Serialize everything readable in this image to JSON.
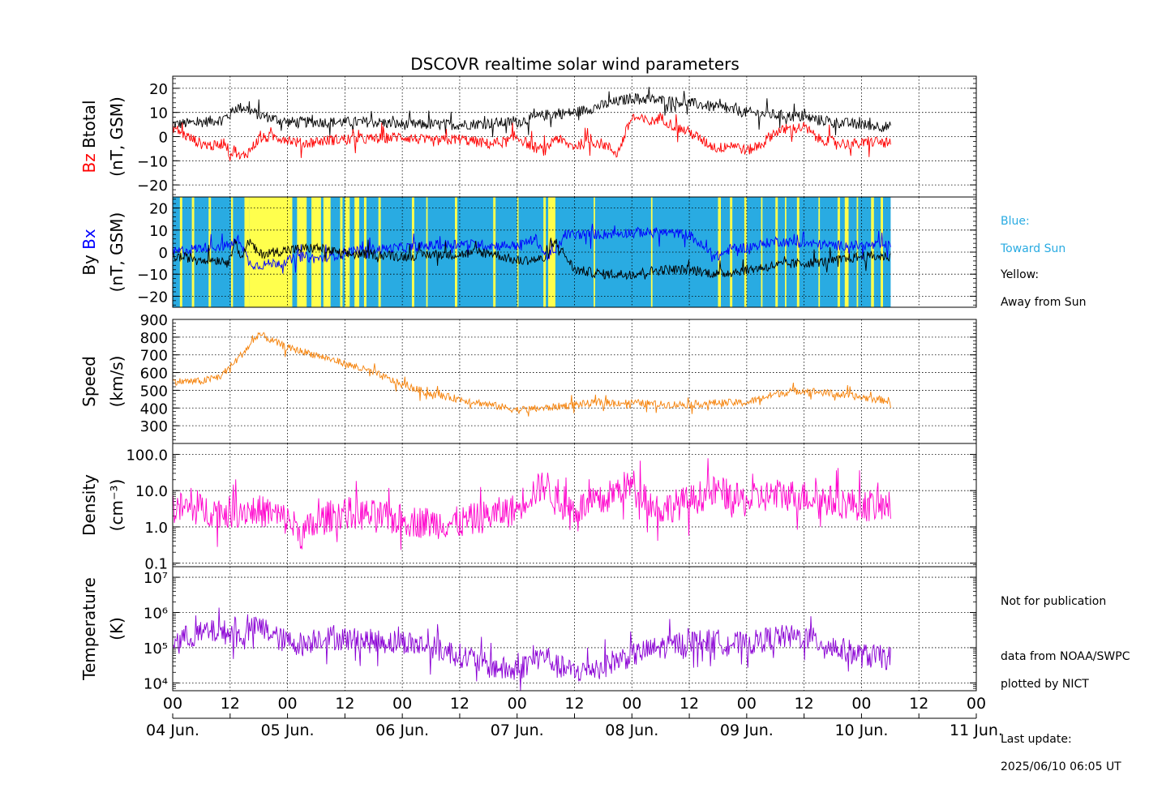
{
  "title": "DSCOVR realtime solar wind parameters",
  "colors": {
    "bz": "#ff0000",
    "btotal": "#000000",
    "bx": "#0000ff",
    "by": "#000000",
    "toward": "#29abe2",
    "away": "#ffff4d",
    "speed": "#f5820a",
    "density": "#ff00cc",
    "temperature": "#8a00d4",
    "toward_text": "#29abe2"
  },
  "legend": {
    "toward_line1": "Blue:",
    "toward_line2": "Toward Sun",
    "away_line1": "Yellow:",
    "away_line2": "Away from Sun"
  },
  "notes": {
    "not_for_publication": "Not for publication",
    "data_source": "data from NOAA/SWPC",
    "plotted_by": "plotted by NICT",
    "last_update_label": "Last update:",
    "last_update_value": "2025/06/10 06:05 UT"
  },
  "chart_data": {
    "type": "line",
    "x_axis": {
      "hour_ticks": [
        "00",
        "12",
        "00",
        "12",
        "00",
        "12",
        "00",
        "12",
        "00",
        "12",
        "00",
        "12",
        "00",
        "12",
        "00"
      ],
      "day_labels": [
        "04 Jun.",
        "05 Jun.",
        "06 Jun.",
        "07 Jun.",
        "08 Jun.",
        "09 Jun.",
        "10 Jun.",
        "11 Jun."
      ],
      "data_end_hours": 150.1
    },
    "panels": [
      {
        "id": "bz_btotal",
        "ylabel_parts": [
          "Bz",
          "Btotal"
        ],
        "yunits": "(nT, GSM)",
        "scale": "linear",
        "ylim": [
          -25,
          25
        ],
        "yticks": [
          20,
          10,
          0,
          -10,
          -20
        ],
        "ytick_labels": [
          "20",
          "10",
          "0",
          "−10",
          "−20"
        ],
        "series": [
          {
            "name": "Btotal",
            "color_key": "btotal",
            "x": [
              0,
              6,
              10,
              12,
              13,
              15,
              18,
              24,
              30,
              36,
              42,
              48,
              60,
              72,
              78,
              84,
              90,
              96,
              102,
              108,
              114,
              120,
              126,
              132,
              138,
              144,
              150
            ],
            "y": [
              5,
              6,
              7,
              9,
              12,
              12,
              9,
              6,
              6,
              6,
              6,
              5,
              5,
              6,
              9,
              10,
              13,
              16,
              15,
              14,
              12,
              10,
              9,
              8,
              6,
              5,
              4
            ]
          },
          {
            "name": "Bz",
            "color_key": "bz",
            "x": [
              0,
              3,
              6,
              9,
              11,
              12,
              13,
              14,
              16,
              18,
              21,
              24,
              27,
              30,
              36,
              42,
              48,
              54,
              60,
              66,
              70,
              72,
              75,
              78,
              80,
              82,
              84,
              87,
              90,
              93,
              96,
              100,
              102,
              105,
              108,
              111,
              114,
              117,
              120,
              123,
              126,
              129,
              132,
              135,
              138,
              141,
              144,
              147,
              150
            ],
            "y": [
              4,
              0,
              -3,
              -4,
              -2,
              -8,
              -5,
              -9,
              -6,
              -1,
              0,
              -1,
              -3,
              -2,
              -1,
              -1,
              0,
              -2,
              -1,
              -3,
              -2,
              0,
              -4,
              -6,
              0,
              -3,
              -4,
              -2,
              -3,
              -7,
              8,
              6,
              8,
              4,
              2,
              -2,
              -5,
              -3,
              -6,
              -3,
              2,
              3,
              4,
              -1,
              -2,
              -3,
              -3,
              -2,
              -3
            ]
          }
        ]
      },
      {
        "id": "bx_by",
        "ylabel_parts": [
          "By",
          "Bx"
        ],
        "yunits": "(nT, GSM)",
        "scale": "linear",
        "ylim": [
          -25,
          25
        ],
        "yticks": [
          20,
          10,
          0,
          -10,
          -20
        ],
        "ytick_labels": [
          "20",
          "10",
          "0",
          "−10",
          "−20"
        ],
        "away_intervals": [
          [
            1.5,
            2
          ],
          [
            4,
            4.5
          ],
          [
            7.5,
            8
          ],
          [
            12.2,
            12.6
          ],
          [
            15,
            16
          ],
          [
            16,
            25
          ],
          [
            26,
            28
          ],
          [
            29,
            31
          ],
          [
            31.5,
            33
          ],
          [
            35,
            35.5
          ],
          [
            36,
            37
          ],
          [
            38,
            39
          ],
          [
            40,
            40.5
          ],
          [
            43,
            43.5
          ],
          [
            50,
            50.5
          ],
          [
            53,
            53.3
          ],
          [
            59,
            59.5
          ],
          [
            67,
            67.5
          ],
          [
            72,
            72.3
          ],
          [
            77.5,
            78
          ],
          [
            78.5,
            80
          ],
          [
            88,
            88.3
          ],
          [
            100,
            100.3
          ],
          [
            114,
            114.6
          ],
          [
            116.5,
            117
          ],
          [
            119.5,
            120
          ],
          [
            123,
            123.3
          ],
          [
            126,
            126.5
          ],
          [
            128,
            128.3
          ],
          [
            130.5,
            131
          ],
          [
            135,
            135.3
          ],
          [
            139,
            139.5
          ],
          [
            140.5,
            141.3
          ],
          [
            143,
            143.3
          ],
          [
            146,
            146.6
          ],
          [
            148,
            148.5
          ]
        ],
        "series": [
          {
            "name": "Bx",
            "color_key": "bx",
            "x": [
              0,
              6,
              12,
              14,
              16,
              18,
              21,
              24,
              27,
              30,
              33,
              36,
              40,
              48,
              54,
              60,
              66,
              72,
              76,
              78,
              80,
              82,
              84,
              90,
              96,
              102,
              108,
              112,
              114,
              117,
              120,
              126,
              132,
              138,
              144,
              150
            ],
            "y": [
              0,
              2,
              3,
              6,
              -5,
              -6,
              -5,
              -4,
              -2,
              -3,
              -2,
              0,
              1,
              2,
              3,
              4,
              3,
              3,
              6,
              -2,
              0,
              8,
              8,
              8,
              9,
              9,
              8,
              0,
              -2,
              2,
              2,
              5,
              4,
              3,
              3,
              3
            ]
          },
          {
            "name": "By",
            "color_key": "by",
            "x": [
              0,
              6,
              12,
              13,
              14,
              16,
              18,
              21,
              24,
              30,
              36,
              42,
              48,
              54,
              60,
              66,
              72,
              78,
              80,
              84,
              90,
              96,
              102,
              108,
              114,
              120,
              126,
              132,
              138,
              144,
              150
            ],
            "y": [
              -2,
              -3,
              -4,
              8,
              -3,
              5,
              -1,
              0,
              1,
              2,
              -1,
              -1,
              -2,
              -1,
              -1,
              0,
              -4,
              -3,
              5,
              -8,
              -10,
              -10,
              -8,
              -8,
              -10,
              -8,
              -6,
              -5,
              -4,
              -2,
              -2
            ]
          }
        ]
      },
      {
        "id": "speed",
        "ylabel_parts": [
          "Speed"
        ],
        "yunits": "(km/s)",
        "scale": "linear",
        "ylim": [
          200,
          900
        ],
        "yticks": [
          900,
          800,
          700,
          600,
          500,
          400,
          300
        ],
        "ytick_labels": [
          "900",
          "800",
          "700",
          "600",
          "500",
          "400",
          "300"
        ],
        "series": [
          {
            "name": "Speed",
            "color_key": "speed",
            "x": [
              0,
              6,
              10,
              13,
              16,
              18,
              20,
              24,
              30,
              36,
              42,
              48,
              54,
              60,
              66,
              72,
              78,
              84,
              90,
              96,
              102,
              108,
              114,
              120,
              126,
              132,
              138,
              144,
              150
            ],
            "y": [
              550,
              550,
              580,
              660,
              750,
              820,
              790,
              740,
              700,
              650,
              600,
              530,
              480,
              450,
              420,
              390,
              400,
              420,
              430,
              430,
              420,
              420,
              430,
              430,
              480,
              500,
              480,
              460,
              440
            ]
          }
        ]
      },
      {
        "id": "density",
        "ylabel_parts": [
          "Density"
        ],
        "yunits": "(cm⁻³)",
        "scale": "log",
        "ylim": [
          0.08,
          200
        ],
        "yticks": [
          100,
          10,
          1,
          0.1
        ],
        "ytick_labels": [
          "100.0",
          "10.0",
          "1.0",
          "0.1"
        ],
        "series": [
          {
            "name": "Density",
            "color_key": "density",
            "x": [
              0,
              6,
              12,
              16,
              20,
              24,
              27,
              30,
              33,
              36,
              42,
              48,
              54,
              60,
              66,
              72,
              76,
              78,
              80,
              84,
              90,
              96,
              100,
              102,
              108,
              114,
              117,
              120,
              126,
              132,
              138,
              144,
              150
            ],
            "y": [
              3.5,
              3,
              2.5,
              3,
              2.5,
              1.5,
              0.6,
              1.2,
              2,
              2.5,
              2,
              1.5,
              1.3,
              1.3,
              2,
              3,
              10,
              15,
              5,
              3,
              5,
              15,
              4,
              3,
              5,
              10,
              6,
              5,
              8,
              7,
              5,
              4,
              3.5
            ]
          }
        ]
      },
      {
        "id": "temperature",
        "ylabel_parts": [
          "Temperature"
        ],
        "yunits": "(K)",
        "scale": "log",
        "ylim": [
          6000,
          20000000
        ],
        "yticks": [
          10000000,
          1000000,
          100000,
          10000
        ],
        "ytick_labels": [
          "10⁷",
          "10⁶",
          "10⁵",
          "10⁴"
        ],
        "series": [
          {
            "name": "Temperature",
            "color_key": "temperature",
            "x": [
              0,
              6,
              10,
              14,
              18,
              22,
              24,
              28,
              30,
              36,
              42,
              48,
              54,
              60,
              66,
              72,
              76,
              78,
              80,
              84,
              90,
              96,
              102,
              108,
              114,
              120,
              126,
              132,
              138,
              144,
              150
            ],
            "y": [
              150000,
              250000,
              300000,
              200000,
              400000,
              180000,
              150000,
              120000,
              200000,
              180000,
              150000,
              150000,
              100000,
              60000,
              30000,
              20000,
              50000,
              60000,
              30000,
              20000,
              30000,
              60000,
              100000,
              150000,
              150000,
              120000,
              200000,
              200000,
              100000,
              60000,
              50000
            ]
          }
        ]
      }
    ]
  }
}
